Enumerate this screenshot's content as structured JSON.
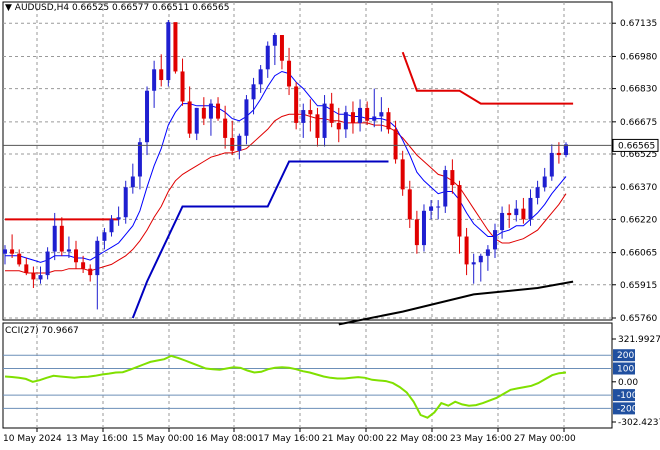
{
  "header": {
    "symbol_label": "AUDUSD,H4",
    "open": "0.66525",
    "high": "0.66577",
    "low": "0.66511",
    "close": "0.66565",
    "marker": "▼"
  },
  "cci_header": {
    "label": "CCI(27) 70.9667"
  },
  "colors": {
    "bull": "#1f1fd0",
    "bear": "#e00000",
    "upper_band": "#e00000",
    "lower_band": "#0000c0",
    "ma_fast": "#0000ff",
    "ma_slow": "#e00000",
    "ma_long": "#000000",
    "cci_line": "#80e000",
    "grid": "#9a9a9a",
    "level_fill": "#2050a0"
  },
  "chart_data": [
    {
      "type": "candlestick",
      "y_ticks": [
        "0.67135",
        "0.66980",
        "0.66830",
        "0.66675",
        "0.66525",
        "0.66370",
        "0.66220",
        "0.66065",
        "0.65915",
        "0.65760"
      ],
      "ylim": [
        0.6576,
        0.6715
      ],
      "x_ticks": [
        "10 May 2024",
        "13 May 16:00",
        "15 May 00:00",
        "16 May 08:00",
        "17 May 16:00",
        "21 May 00:00",
        "22 May 08:00",
        "23 May 16:00",
        "27 May 00:00"
      ],
      "current_price": "0.66565",
      "candles": [
        [
          0.6606,
          0.661,
          0.6601,
          0.6608
        ],
        [
          0.6608,
          0.6615,
          0.6604,
          0.6606
        ],
        [
          0.6606,
          0.6608,
          0.66,
          0.6601
        ],
        [
          0.6601,
          0.6604,
          0.6596,
          0.6597
        ],
        [
          0.6597,
          0.66,
          0.659,
          0.6594
        ],
        [
          0.6594,
          0.66,
          0.6592,
          0.6596
        ],
        [
          0.6596,
          0.6609,
          0.6594,
          0.6607
        ],
        [
          0.6607,
          0.6625,
          0.6603,
          0.6619
        ],
        [
          0.6619,
          0.6623,
          0.6605,
          0.6607
        ],
        [
          0.6607,
          0.6614,
          0.6604,
          0.6608
        ],
        [
          0.6608,
          0.6612,
          0.6599,
          0.6602
        ],
        [
          0.6602,
          0.6605,
          0.6597,
          0.6599
        ],
        [
          0.6599,
          0.6601,
          0.6593,
          0.6596
        ],
        [
          0.6596,
          0.6614,
          0.658,
          0.6612
        ],
        [
          0.6612,
          0.6618,
          0.6608,
          0.6616
        ],
        [
          0.6616,
          0.6624,
          0.6614,
          0.6622
        ],
        [
          0.6622,
          0.6628,
          0.6619,
          0.6623
        ],
        [
          0.6623,
          0.664,
          0.662,
          0.6637
        ],
        [
          0.6637,
          0.6648,
          0.6634,
          0.6642
        ],
        [
          0.6642,
          0.666,
          0.6636,
          0.6658
        ],
        [
          0.6658,
          0.6684,
          0.6652,
          0.6682
        ],
        [
          0.6682,
          0.6696,
          0.6674,
          0.6692
        ],
        [
          0.6692,
          0.6699,
          0.6684,
          0.6687
        ],
        [
          0.6687,
          0.6715,
          0.6684,
          0.6714
        ],
        [
          0.6714,
          0.6713,
          0.669,
          0.6691
        ],
        [
          0.6691,
          0.6697,
          0.6675,
          0.6677
        ],
        [
          0.6677,
          0.6684,
          0.666,
          0.6662
        ],
        [
          0.6662,
          0.6674,
          0.6659,
          0.6674
        ],
        [
          0.6674,
          0.6679,
          0.6666,
          0.6669
        ],
        [
          0.6669,
          0.6678,
          0.6661,
          0.6676
        ],
        [
          0.6676,
          0.6679,
          0.6668,
          0.6669
        ],
        [
          0.6669,
          0.6675,
          0.6655,
          0.666
        ],
        [
          0.666,
          0.6668,
          0.6652,
          0.6654
        ],
        [
          0.6654,
          0.6662,
          0.665,
          0.6661
        ],
        [
          0.6661,
          0.668,
          0.6657,
          0.6678
        ],
        [
          0.6678,
          0.6688,
          0.6671,
          0.6685
        ],
        [
          0.6685,
          0.6694,
          0.6681,
          0.6692
        ],
        [
          0.6692,
          0.6705,
          0.6688,
          0.6703
        ],
        [
          0.6703,
          0.6709,
          0.6694,
          0.6708
        ],
        [
          0.6708,
          0.6708,
          0.6692,
          0.6696
        ],
        [
          0.6696,
          0.6702,
          0.668,
          0.6684
        ],
        [
          0.6684,
          0.6686,
          0.6664,
          0.6667
        ],
        [
          0.6667,
          0.6676,
          0.666,
          0.6673
        ],
        [
          0.6673,
          0.6678,
          0.6663,
          0.6671
        ],
        [
          0.6671,
          0.6674,
          0.6656,
          0.666
        ],
        [
          0.666,
          0.668,
          0.6656,
          0.6676
        ],
        [
          0.6676,
          0.6681,
          0.6665,
          0.6667
        ],
        [
          0.6667,
          0.6674,
          0.6658,
          0.6664
        ],
        [
          0.6664,
          0.6675,
          0.666,
          0.6672
        ],
        [
          0.6672,
          0.6677,
          0.6662,
          0.6667
        ],
        [
          0.6667,
          0.6678,
          0.6663,
          0.6674
        ],
        [
          0.6674,
          0.6677,
          0.6666,
          0.6668
        ],
        [
          0.6668,
          0.6683,
          0.6665,
          0.667
        ],
        [
          0.667,
          0.6679,
          0.6663,
          0.6672
        ],
        [
          0.6672,
          0.6674,
          0.6662,
          0.6664
        ],
        [
          0.6664,
          0.6668,
          0.6648,
          0.665
        ],
        [
          0.665,
          0.6654,
          0.6633,
          0.6636
        ],
        [
          0.6636,
          0.664,
          0.6618,
          0.6622
        ],
        [
          0.6622,
          0.6626,
          0.6606,
          0.661
        ],
        [
          0.661,
          0.6629,
          0.6607,
          0.6626
        ],
        [
          0.6626,
          0.6631,
          0.6622,
          0.6628
        ],
        [
          0.6628,
          0.6631,
          0.6622,
          0.6628
        ],
        [
          0.6628,
          0.6647,
          0.6625,
          0.6645
        ],
        [
          0.6645,
          0.665,
          0.6634,
          0.6638
        ],
        [
          0.6638,
          0.664,
          0.6606,
          0.6614
        ],
        [
          0.6614,
          0.6618,
          0.6596,
          0.6601
        ],
        [
          0.6601,
          0.6606,
          0.6592,
          0.6602
        ],
        [
          0.6602,
          0.6606,
          0.6593,
          0.6605
        ],
        [
          0.6605,
          0.661,
          0.6598,
          0.6608
        ],
        [
          0.6608,
          0.662,
          0.6604,
          0.6617
        ],
        [
          0.6617,
          0.6628,
          0.6613,
          0.6625
        ],
        [
          0.6625,
          0.6629,
          0.6618,
          0.6624
        ],
        [
          0.6624,
          0.6631,
          0.6621,
          0.6627
        ],
        [
          0.6627,
          0.6632,
          0.662,
          0.6622
        ],
        [
          0.6622,
          0.6636,
          0.6619,
          0.6632
        ],
        [
          0.6632,
          0.664,
          0.6629,
          0.6637
        ],
        [
          0.6637,
          0.6646,
          0.6635,
          0.6642
        ],
        [
          0.6642,
          0.6657,
          0.664,
          0.6653
        ],
        [
          0.6653,
          0.6658,
          0.6648,
          0.6652
        ],
        [
          0.6652,
          0.6658,
          0.6651,
          0.6657
        ]
      ],
      "ma_fast": [
        0.6605,
        0.6605,
        0.6605,
        0.6604,
        0.6603,
        0.6602,
        0.6603,
        0.6605,
        0.6605,
        0.6605,
        0.6604,
        0.6604,
        0.6603,
        0.6605,
        0.6607,
        0.6609,
        0.6611,
        0.6615,
        0.6619,
        0.6626,
        0.6637,
        0.6647,
        0.6655,
        0.6666,
        0.6672,
        0.6676,
        0.6676,
        0.6675,
        0.6675,
        0.6675,
        0.6674,
        0.6672,
        0.6669,
        0.6668,
        0.667,
        0.6673,
        0.6678,
        0.6684,
        0.6689,
        0.6691,
        0.669,
        0.6686,
        0.6683,
        0.6679,
        0.6675,
        0.6675,
        0.6673,
        0.6671,
        0.6671,
        0.667,
        0.667,
        0.6669,
        0.6669,
        0.6669,
        0.6668,
        0.6665,
        0.6659,
        0.6652,
        0.6644,
        0.664,
        0.6637,
        0.6634,
        0.6635,
        0.6635,
        0.6631,
        0.6625,
        0.662,
        0.6617,
        0.6614,
        0.6614,
        0.6616,
        0.6617,
        0.6619,
        0.6619,
        0.6622,
        0.6625,
        0.6629,
        0.6634,
        0.6638,
        0.6642
      ],
      "ma_slow": [
        0.6598,
        0.6598,
        0.6598,
        0.6597,
        0.6597,
        0.6597,
        0.6597,
        0.6598,
        0.6598,
        0.6599,
        0.6599,
        0.6599,
        0.6598,
        0.6599,
        0.66,
        0.6601,
        0.6603,
        0.6605,
        0.6608,
        0.6612,
        0.6617,
        0.6623,
        0.6628,
        0.6635,
        0.664,
        0.6643,
        0.6645,
        0.6647,
        0.6649,
        0.6651,
        0.6652,
        0.6653,
        0.6653,
        0.6654,
        0.6655,
        0.6658,
        0.6661,
        0.6664,
        0.6668,
        0.667,
        0.6671,
        0.6671,
        0.6671,
        0.667,
        0.6669,
        0.6669,
        0.6668,
        0.6668,
        0.6667,
        0.6667,
        0.6667,
        0.6667,
        0.6666,
        0.6666,
        0.6665,
        0.6663,
        0.666,
        0.6656,
        0.6652,
        0.6649,
        0.6646,
        0.6643,
        0.6642,
        0.664,
        0.6637,
        0.6632,
        0.6627,
        0.6622,
        0.6617,
        0.6613,
        0.6611,
        0.6611,
        0.6612,
        0.6613,
        0.6615,
        0.6617,
        0.6621,
        0.6625,
        0.6629,
        0.6634
      ],
      "ma_long_segment": [
        [
          47,
          0.6573
        ],
        [
          56,
          0.6579
        ],
        [
          66,
          0.6587
        ],
        [
          75,
          0.659
        ],
        [
          80,
          0.6593
        ]
      ],
      "upper_band_segments": [
        [
          [
            0,
            0.6622
          ],
          [
            16,
            0.6622
          ]
        ],
        [
          [
            56,
            0.67
          ],
          [
            58,
            0.6682
          ],
          [
            64,
            0.6682
          ],
          [
            67,
            0.6676
          ],
          [
            80,
            0.6676
          ]
        ]
      ],
      "lower_band_segments": [
        [
          [
            18,
            0.6576
          ],
          [
            20,
            0.6593
          ],
          [
            25,
            0.6628
          ],
          [
            37,
            0.6628
          ],
          [
            40,
            0.6649
          ],
          [
            54,
            0.6649
          ]
        ]
      ]
    },
    {
      "type": "line",
      "name": "CCI(27)",
      "y_ticks": [
        "321.9927",
        "200",
        "100",
        "0.00",
        "-100",
        "-200",
        "-302.4237"
      ],
      "levels": [
        200,
        100,
        -100,
        -200
      ],
      "ylim": [
        -302.4237,
        321.9927
      ],
      "values": [
        40,
        36,
        30,
        22,
        0,
        12,
        30,
        45,
        40,
        35,
        30,
        36,
        38,
        45,
        55,
        62,
        70,
        72,
        90,
        110,
        130,
        150,
        160,
        170,
        195,
        180,
        160,
        140,
        120,
        100,
        95,
        90,
        100,
        110,
        105,
        85,
        70,
        75,
        95,
        105,
        110,
        105,
        95,
        80,
        70,
        55,
        40,
        30,
        25,
        25,
        30,
        35,
        30,
        15,
        10,
        5,
        -10,
        -40,
        -80,
        -150,
        -250,
        -270,
        -230,
        -160,
        -180,
        -150,
        -170,
        -180,
        -175,
        -160,
        -140,
        -120,
        -90,
        -60,
        -50,
        -40,
        -30,
        -10,
        20,
        50,
        65,
        70
      ]
    }
  ]
}
